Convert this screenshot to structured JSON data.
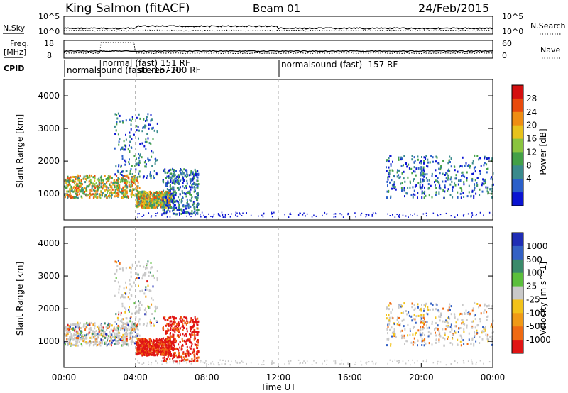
{
  "header": {
    "station": "King Salmon (fitACF)",
    "beam": "Beam 01",
    "date": "24/Feb/2015"
  },
  "param_panels": {
    "nsky_label": "N.Sky",
    "nsearch_label": "N.Search",
    "noise_tick_top": "10^5",
    "noise_tick_bottom": "10^0",
    "freq_label_1": "Freq.",
    "freq_label_2": "[MHz]",
    "freq_tick_top": "18",
    "freq_tick_bottom": "8",
    "nave_label": "Nave",
    "nave_tick_top": "60",
    "nave_tick_bottom": "0",
    "cpid_label": "CPID",
    "cpid_entries": [
      {
        "label": "normalsound (fast) -157 RF",
        "start_hour": 0.0
      },
      {
        "label": "normal (fast) 151 RF",
        "start_hour": 2.0
      },
      {
        "label": "stereo -200 RF",
        "start_hour": 4.0
      },
      {
        "label": "normalsound (fast) -157 RF",
        "start_hour": 12.0
      }
    ]
  },
  "chart_data": [
    {
      "type": "heatmap",
      "name": "power",
      "ylabel": "Slant Range [km]",
      "xlabel": "",
      "xlim": [
        0,
        24
      ],
      "ylim": [
        200,
        4500
      ],
      "yticks": [
        1000,
        2000,
        3000,
        4000
      ],
      "colorbar": {
        "label": "Power [dB]",
        "ticks": [
          "4",
          "8",
          "12",
          "16",
          "20",
          "24",
          "28"
        ],
        "colors": [
          "#0a14d2",
          "#2a5fc9",
          "#3a8a8c",
          "#43a047",
          "#8ac43f",
          "#e8c21c",
          "#ef8d12",
          "#e84a0c",
          "#d30f0f"
        ]
      },
      "echo_regions": [
        {
          "t_start": 0.0,
          "t_end": 4.2,
          "range_min": 900,
          "range_max": 1600,
          "level": "strong"
        },
        {
          "t_start": 2.8,
          "t_end": 5.2,
          "range_min": 1500,
          "range_max": 3500,
          "level": "weak"
        },
        {
          "t_start": 4.0,
          "t_end": 6.0,
          "range_min": 600,
          "range_max": 1100,
          "level": "strong"
        },
        {
          "t_start": 5.5,
          "t_end": 7.5,
          "range_min": 400,
          "range_max": 1800,
          "level": "moderate"
        },
        {
          "t_start": 18.0,
          "t_end": 24.0,
          "range_min": 900,
          "range_max": 2200,
          "level": "moderate"
        }
      ]
    },
    {
      "type": "heatmap",
      "name": "velocity",
      "ylabel": "Slant Range [km]",
      "xlabel": "Time UT",
      "xlim": [
        0,
        24
      ],
      "ylim": [
        200,
        4500
      ],
      "yticks": [
        1000,
        2000,
        3000,
        4000
      ],
      "xticks": [
        "00:00",
        "04:00",
        "08:00",
        "12:00",
        "16:00",
        "20:00",
        "00:00"
      ],
      "colorbar": {
        "label": "Velocity [m s^-1]",
        "ticks": [
          "1000",
          "500",
          "100",
          "25",
          "-25",
          "-100",
          "-500",
          "-1000"
        ],
        "colors": [
          "#1f2db5",
          "#3461c4",
          "#3a8a6b",
          "#5bbf3c",
          "#c9c9c9",
          "#f2c21a",
          "#f09a16",
          "#ef6a12",
          "#e01414"
        ]
      }
    }
  ]
}
